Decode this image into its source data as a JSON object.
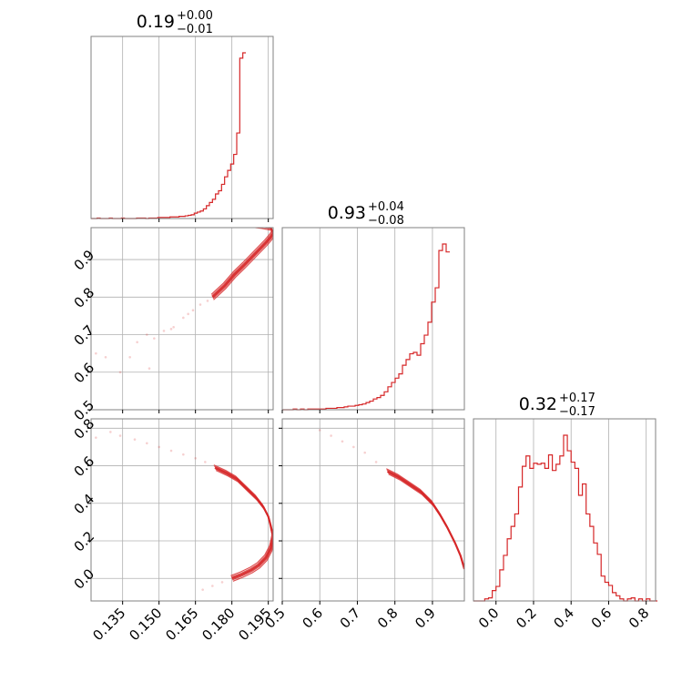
{
  "colors": {
    "series": "#d62728",
    "grid": "#b0b0b0",
    "frame": "#808080"
  },
  "chart_data": {
    "type": "corner",
    "grid": true,
    "params": [
      {
        "range": [
          0.122,
          0.197
        ],
        "ticks": [
          "0.135",
          "0.150",
          "0.165",
          "0.180",
          "0.195"
        ],
        "tick_values": [
          0.135,
          0.15,
          0.165,
          0.18,
          0.195
        ],
        "title": {
          "main": "0.19",
          "plus": "+0.00",
          "minus": "−0.01"
        }
      },
      {
        "range": [
          0.5,
          0.985
        ],
        "ticks": [
          "0.5",
          "0.6",
          "0.7",
          "0.8",
          "0.9"
        ],
        "tick_values": [
          0.5,
          0.6,
          0.7,
          0.8,
          0.9
        ],
        "title": {
          "main": "0.93",
          "plus": "+0.04",
          "minus": "−0.08"
        }
      },
      {
        "range": [
          -0.12,
          0.85
        ],
        "ticks": [
          "0.0",
          "0.2",
          "0.4",
          "0.6",
          "0.8"
        ],
        "tick_values": [
          0.0,
          0.2,
          0.4,
          0.6,
          0.8
        ],
        "title": {
          "main": "0.32",
          "plus": "+0.17",
          "minus": "−0.17"
        }
      }
    ],
    "histograms": [
      {
        "param": 0,
        "bin_start": 0.122,
        "bin_width": 0.00125,
        "counts": [
          0,
          0,
          1,
          0,
          0,
          0,
          1,
          0,
          0,
          0,
          1,
          0,
          0,
          0,
          0,
          1,
          1,
          1,
          0,
          1,
          1,
          1,
          2,
          2,
          2,
          2,
          3,
          3,
          3,
          4,
          4,
          5,
          6,
          7,
          10,
          12,
          14,
          18,
          24,
          30,
          36,
          46,
          52,
          64,
          78,
          90,
          102,
          120,
          160,
          300,
          310
        ]
      },
      {
        "param": 1,
        "bin_start": 0.5,
        "bin_width": 0.0097,
        "counts": [
          0,
          0,
          0,
          1,
          0,
          1,
          0,
          1,
          1,
          1,
          1,
          1,
          2,
          2,
          2,
          3,
          3,
          4,
          5,
          5,
          6,
          7,
          8,
          10,
          12,
          15,
          17,
          20,
          25,
          32,
          38,
          44,
          50,
          62,
          70,
          78,
          80,
          76,
          92,
          104,
          122,
          150,
          170,
          222,
          231,
          220
        ]
      },
      {
        "param": 2,
        "bin_start": -0.12,
        "bin_width": 0.02,
        "counts": [
          0,
          0,
          0,
          2,
          3,
          10,
          14,
          30,
          44,
          60,
          72,
          84,
          110,
          130,
          140,
          128,
          133,
          132,
          133,
          128,
          141,
          126,
          132,
          140,
          160,
          145,
          134,
          128,
          102,
          113,
          84,
          72,
          56,
          45,
          24,
          18,
          15,
          8,
          5,
          2,
          0,
          2,
          3,
          0,
          2,
          0,
          2,
          0,
          0
        ]
      }
    ],
    "scatter_panels": [
      {
        "x": 0,
        "y": 1,
        "curve": [
          [
            0.172,
            0.8
          ],
          [
            0.177,
            0.83
          ],
          [
            0.181,
            0.86
          ],
          [
            0.185,
            0.885
          ],
          [
            0.188,
            0.905
          ],
          [
            0.191,
            0.925
          ],
          [
            0.194,
            0.945
          ],
          [
            0.196,
            0.96
          ],
          [
            0.197,
            0.97
          ],
          [
            0.196,
            0.985
          ],
          [
            0.192,
            0.99
          ],
          [
            0.186,
            0.995
          ],
          [
            0.178,
            1.0
          ]
        ],
        "faint": [
          [
            0.124,
            0.65
          ],
          [
            0.128,
            0.64
          ],
          [
            0.134,
            0.6
          ],
          [
            0.138,
            0.64
          ],
          [
            0.141,
            0.68
          ],
          [
            0.145,
            0.7
          ],
          [
            0.148,
            0.69
          ],
          [
            0.152,
            0.71
          ],
          [
            0.156,
            0.72
          ],
          [
            0.16,
            0.745
          ],
          [
            0.164,
            0.765
          ],
          [
            0.167,
            0.78
          ],
          [
            0.17,
            0.79
          ],
          [
            0.146,
            0.61
          ],
          [
            0.155,
            0.715
          ],
          [
            0.162,
            0.755
          ]
        ]
      },
      {
        "x": 0,
        "y": 2,
        "curve": [
          [
            0.173,
            0.59
          ],
          [
            0.178,
            0.56
          ],
          [
            0.182,
            0.53
          ],
          [
            0.186,
            0.48
          ],
          [
            0.19,
            0.43
          ],
          [
            0.193,
            0.38
          ],
          [
            0.195,
            0.33
          ],
          [
            0.196,
            0.28
          ],
          [
            0.197,
            0.22
          ],
          [
            0.196,
            0.16
          ],
          [
            0.194,
            0.11
          ],
          [
            0.191,
            0.07
          ],
          [
            0.188,
            0.045
          ],
          [
            0.184,
            0.02
          ],
          [
            0.18,
            0.0
          ]
        ],
        "faint": [
          [
            0.124,
            0.75
          ],
          [
            0.13,
            0.78
          ],
          [
            0.134,
            0.76
          ],
          [
            0.14,
            0.74
          ],
          [
            0.145,
            0.72
          ],
          [
            0.15,
            0.7
          ],
          [
            0.155,
            0.68
          ],
          [
            0.16,
            0.66
          ],
          [
            0.165,
            0.64
          ],
          [
            0.169,
            0.62
          ],
          [
            0.176,
            -0.02
          ],
          [
            0.172,
            -0.04
          ],
          [
            0.168,
            -0.06
          ]
        ]
      },
      {
        "x": 1,
        "y": 2,
        "curve": [
          [
            0.78,
            0.57
          ],
          [
            0.81,
            0.54
          ],
          [
            0.84,
            0.5
          ],
          [
            0.87,
            0.46
          ],
          [
            0.9,
            0.4
          ],
          [
            0.92,
            0.34
          ],
          [
            0.94,
            0.27
          ],
          [
            0.96,
            0.19
          ],
          [
            0.975,
            0.12
          ],
          [
            0.985,
            0.05
          ]
        ],
        "faint": [
          [
            0.6,
            0.79
          ],
          [
            0.63,
            0.76
          ],
          [
            0.66,
            0.73
          ],
          [
            0.69,
            0.7
          ],
          [
            0.72,
            0.67
          ],
          [
            0.75,
            0.62
          ]
        ]
      }
    ]
  }
}
